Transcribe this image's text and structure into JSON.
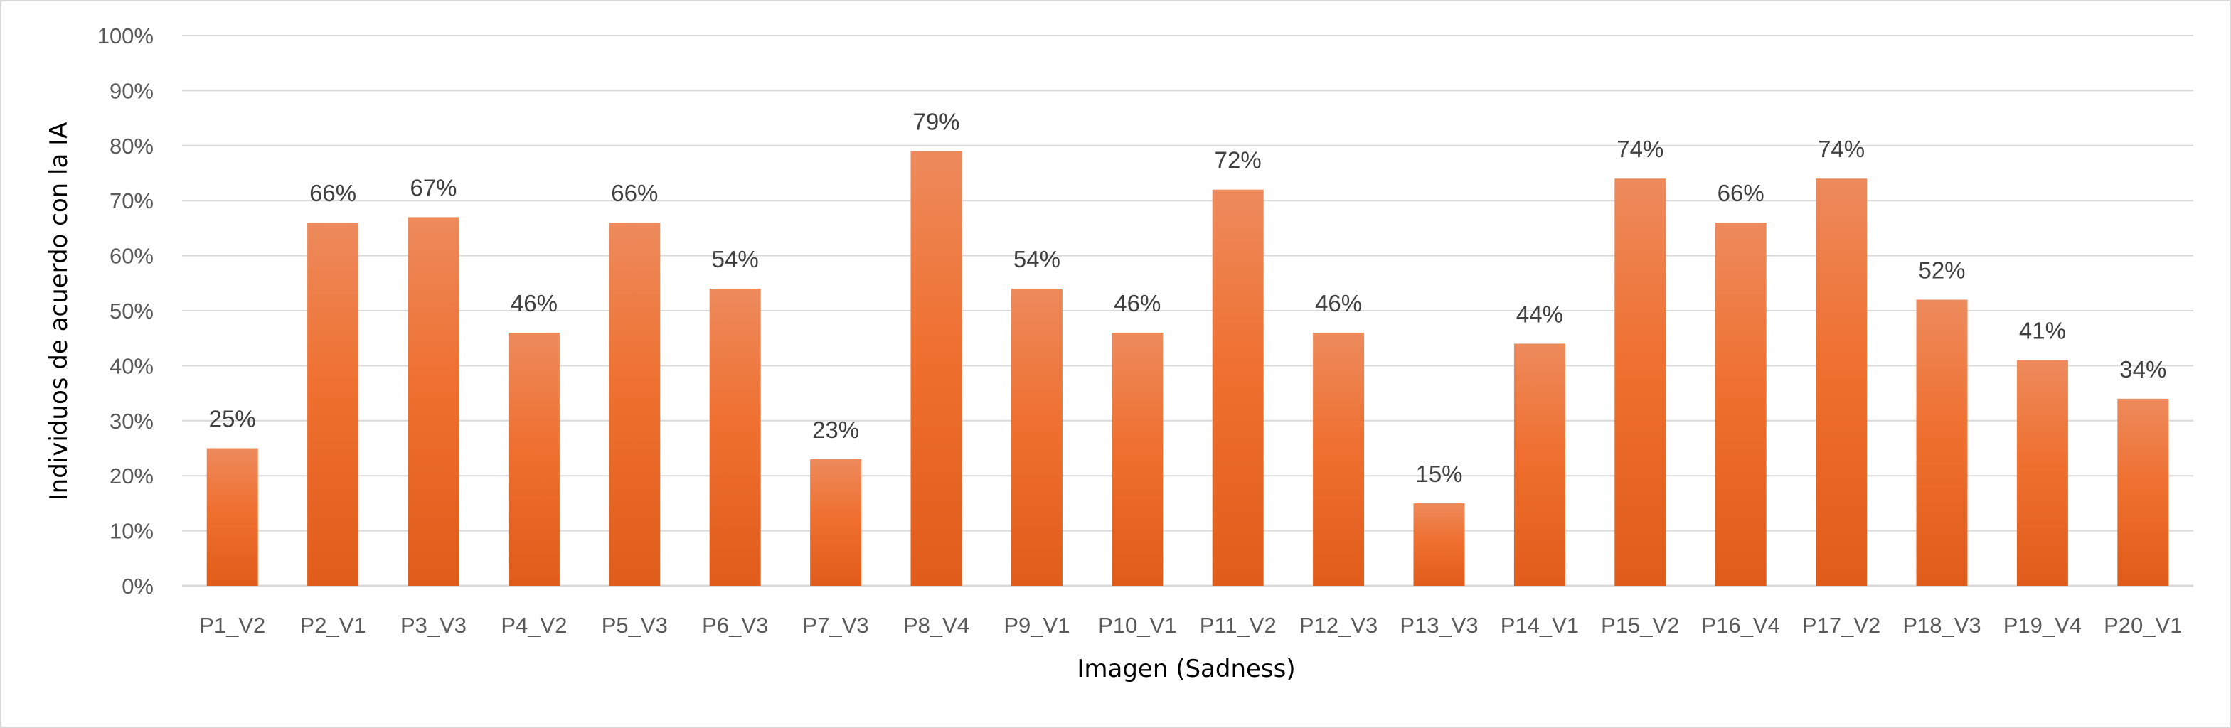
{
  "chart_data": {
    "type": "bar",
    "xlabel": "Imagen (Sadness)",
    "ylabel": "Individuos de acuerdo con la IA",
    "ylim": [
      0,
      100
    ],
    "y_ticks": [
      "0%",
      "10%",
      "20%",
      "30%",
      "40%",
      "50%",
      "60%",
      "70%",
      "80%",
      "90%",
      "100%"
    ],
    "grid": true,
    "legend": "none",
    "colors": {
      "bar_top": "#ed8a5c",
      "bar_mid": "#ef7030",
      "bar_bottom": "#e05c1a",
      "grid": "#d9d9d9"
    },
    "categories": [
      "P1_V2",
      "P2_V1",
      "P3_V3",
      "P4_V2",
      "P5_V3",
      "P6_V3",
      "P7_V3",
      "P8_V4",
      "P9_V1",
      "P10_V1",
      "P11_V2",
      "P12_V3",
      "P13_V3",
      "P14_V1",
      "P15_V2",
      "P16_V4",
      "P17_V2",
      "P18_V3",
      "P19_V4",
      "P20_V1"
    ],
    "values": [
      25,
      66,
      67,
      46,
      66,
      54,
      23,
      79,
      54,
      46,
      72,
      46,
      15,
      44,
      74,
      66,
      74,
      52,
      41,
      34
    ],
    "data_labels": [
      "25%",
      "66%",
      "67%",
      "46%",
      "66%",
      "54%",
      "23%",
      "79%",
      "54%",
      "46%",
      "72%",
      "46%",
      "15%",
      "44%",
      "74%",
      "66%",
      "74%",
      "52%",
      "41%",
      "34%"
    ]
  }
}
